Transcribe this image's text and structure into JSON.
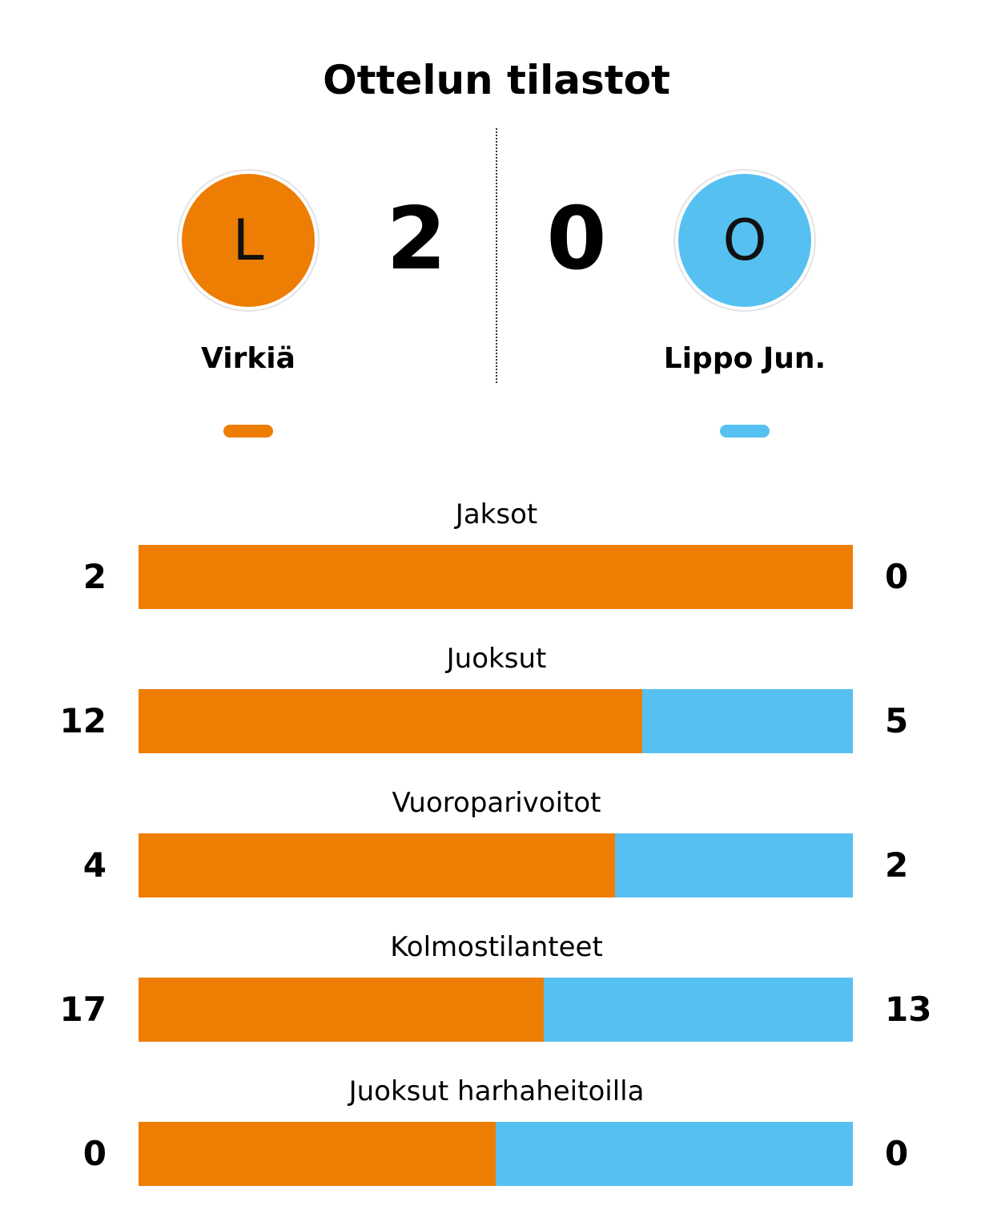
{
  "title": "Ottelun tilastot",
  "home": {
    "name": "Virkiä",
    "logo_letter": "L",
    "score": "2",
    "color": "#ee7d03"
  },
  "away": {
    "name": "Lippo Jun.",
    "logo_letter": "O",
    "score": "0",
    "color": "#56c1f1"
  },
  "stats": [
    {
      "label": "Jaksot",
      "home": "2",
      "away": "0",
      "home_share": 1.0
    },
    {
      "label": "Juoksut",
      "home": "12",
      "away": "5",
      "home_share": 0.705
    },
    {
      "label": "Vuoroparivoitot",
      "home": "4",
      "away": "2",
      "home_share": 0.667
    },
    {
      "label": "Kolmostilanteet",
      "home": "17",
      "away": "13",
      "home_share": 0.567
    },
    {
      "label": "Juoksut harhaheitoilla",
      "home": "0",
      "away": "0",
      "home_share": 0.5
    }
  ]
}
